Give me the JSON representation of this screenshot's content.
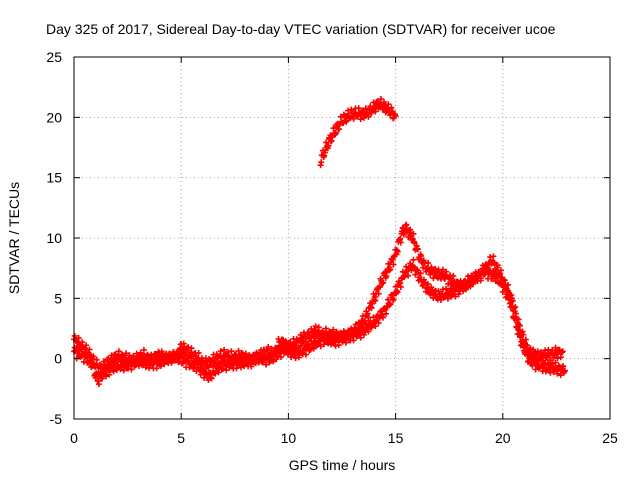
{
  "chart_data": {
    "type": "scatter",
    "title": "Day 325 of 2017, Sidereal Day-to-day VTEC variation (SDTVAR) for receiver ucoe",
    "xlabel": "GPS time / hours",
    "ylabel": "SDTVAR / TECUs",
    "xlim": [
      0,
      25
    ],
    "ylim": [
      -5,
      25
    ],
    "xticks": [
      "0",
      "5",
      "10",
      "15",
      "20",
      "25"
    ],
    "yticks": [
      "-5",
      "0",
      "5",
      "10",
      "15",
      "20",
      "25"
    ],
    "grid": true,
    "marker": "plus",
    "series": [
      {
        "name": "SDTVAR",
        "color": "#ff0000",
        "segments": [
          {
            "x": [
              0,
              0.25,
              0.5,
              0.75,
              1.0,
              1.3,
              1.6,
              2.0,
              2.4,
              2.8,
              3.2,
              3.6,
              4.0,
              4.4,
              4.8,
              5.0,
              5.3,
              5.6,
              6.0,
              6.3,
              6.6,
              7.0,
              7.4,
              7.8,
              8.2,
              8.6,
              9.0,
              9.3,
              9.6,
              10.0,
              10.3,
              10.6,
              11.0,
              11.3,
              11.6,
              12.0,
              12.4,
              12.8,
              13.2,
              13.6,
              14.0,
              14.3,
              14.6,
              14.9,
              15.1,
              15.3,
              15.5,
              15.8,
              16.1,
              16.4,
              16.7,
              17.0,
              17.3,
              17.6,
              18.0,
              18.4,
              18.8,
              19.1,
              19.4,
              19.7,
              20.0,
              20.3,
              20.6,
              20.9,
              21.2,
              21.5,
              21.8,
              22.1,
              22.4,
              22.7,
              22.9
            ],
            "y": [
              1.6,
              1.2,
              0.8,
              0.3,
              -0.5,
              -0.8,
              -0.3,
              0.2,
              0.0,
              -0.2,
              0.3,
              -0.1,
              0.3,
              0.0,
              0.2,
              1.0,
              0.6,
              0.3,
              -0.3,
              -0.4,
              0.0,
              0.3,
              0.1,
              0.2,
              -0.1,
              0.2,
              0.6,
              0.3,
              1.4,
              1.0,
              1.2,
              1.6,
              2.0,
              2.3,
              2.0,
              2.0,
              1.8,
              2.0,
              2.5,
              3.4,
              5.0,
              6.2,
              7.2,
              8.3,
              9.2,
              10.5,
              10.8,
              10.0,
              8.5,
              7.6,
              7.2,
              7.0,
              6.9,
              6.5,
              6.0,
              6.2,
              6.8,
              7.3,
              7.0,
              6.8,
              6.0,
              5.0,
              3.0,
              1.2,
              0.0,
              -0.4,
              -0.6,
              -0.7,
              -0.8,
              -0.9,
              -1.0
            ]
          },
          {
            "x": [
              0,
              0.4,
              0.8,
              1.1,
              1.5,
              2.0,
              2.5,
              3.0,
              3.5,
              4.0,
              4.6,
              5.2,
              5.8,
              6.3,
              6.8,
              7.4,
              8.0,
              8.6,
              9.2,
              9.8,
              10.4,
              11.0,
              11.6,
              12.2,
              12.8,
              13.4,
              14.0,
              14.5,
              15.0,
              15.4,
              15.8,
              16.2,
              16.6,
              17.0,
              17.5,
              18.0,
              18.5,
              19.0,
              19.5,
              20.0,
              20.4,
              20.8,
              21.2,
              21.6,
              22.0,
              22.4,
              22.8
            ],
            "y": [
              0.6,
              0.3,
              -0.3,
              -1.8,
              -1.0,
              -0.6,
              -0.5,
              -0.2,
              -0.4,
              -0.3,
              0.2,
              -0.2,
              -0.7,
              -1.5,
              -0.6,
              -0.4,
              -0.3,
              0.0,
              0.0,
              0.8,
              0.4,
              1.0,
              1.6,
              1.5,
              1.8,
              2.2,
              3.0,
              4.0,
              5.5,
              7.0,
              7.8,
              6.5,
              5.6,
              5.2,
              5.4,
              5.8,
              6.5,
              7.0,
              8.2,
              6.6,
              5.0,
              2.5,
              0.6,
              0.2,
              0.3,
              0.4,
              0.6
            ]
          },
          {
            "x": [
              11.5,
              11.7,
              11.9,
              12.1,
              12.3,
              12.5,
              12.7,
              12.9,
              13.1,
              13.4,
              13.7,
              14.0,
              14.2,
              14.4,
              14.6,
              14.8,
              15.0
            ],
            "y": [
              16.4,
              17.2,
              18.0,
              18.6,
              19.2,
              19.7,
              20.0,
              20.2,
              20.3,
              20.3,
              20.4,
              20.8,
              21.1,
              21.0,
              20.7,
              20.4,
              20.1
            ]
          }
        ]
      }
    ]
  }
}
